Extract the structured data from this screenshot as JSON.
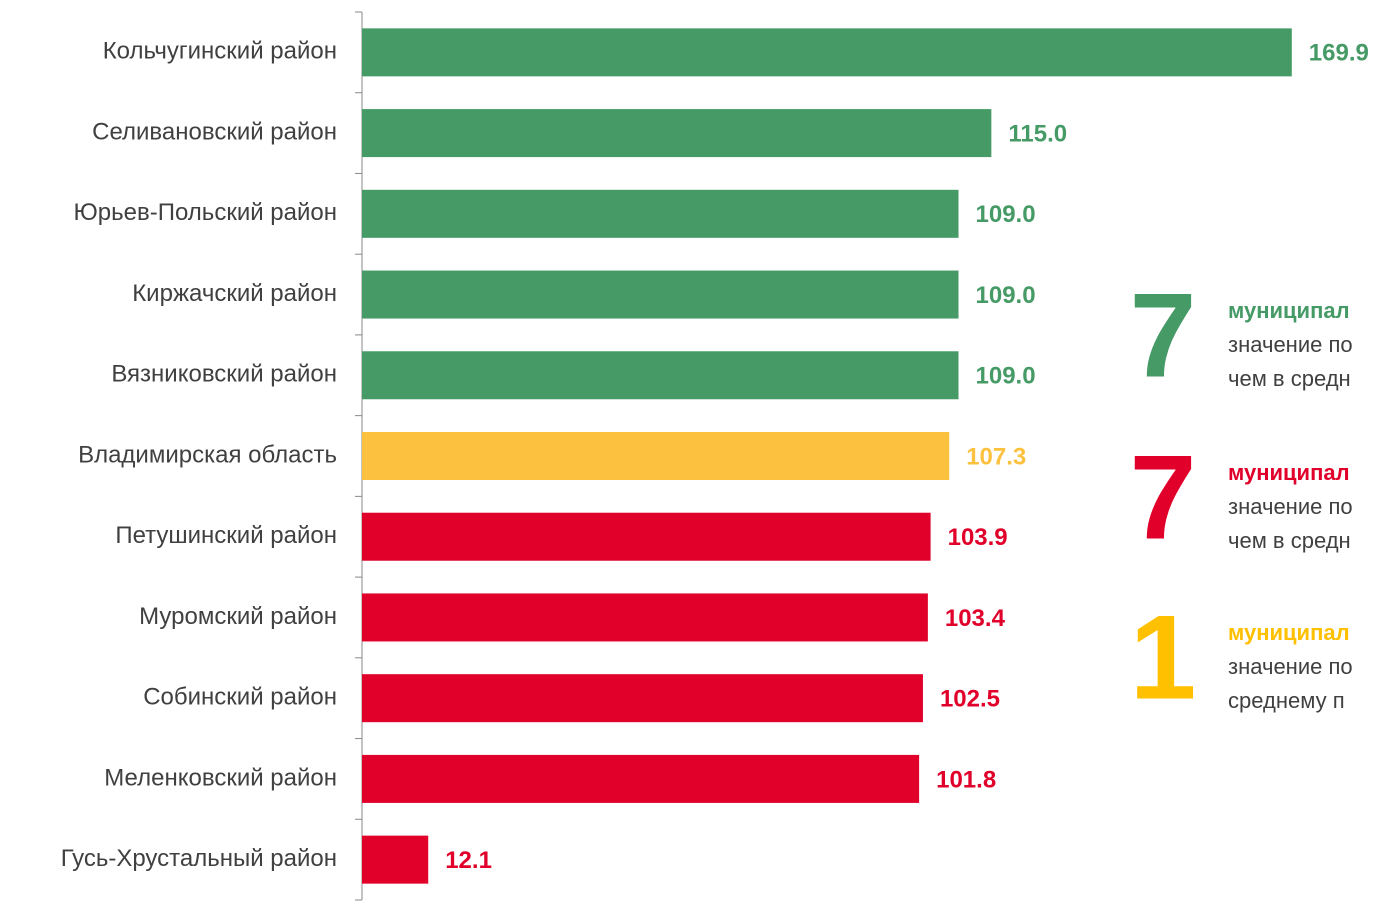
{
  "chart_data": {
    "type": "bar",
    "categories": [
      "Кольчугинский район",
      "Селивановский район",
      "Юрьев-Польский район",
      "Киржачский район",
      "Вязниковский район",
      "Владимирская область",
      "Петушинский район",
      "Муромский район",
      "Собинский район",
      "Меленковский район",
      "Гусь-Хрустальный район"
    ],
    "values": [
      169.9,
      115.0,
      109.0,
      109.0,
      109.0,
      107.3,
      103.9,
      103.4,
      102.5,
      101.8,
      12.1
    ],
    "value_labels": [
      "169.9",
      "115.0",
      "109.0",
      "109.0",
      "109.0",
      "107.3",
      "103.9",
      "103.4",
      "102.5",
      "101.8",
      "12.1"
    ],
    "colors": [
      "#459a66",
      "#459a66",
      "#459a66",
      "#459a66",
      "#459a66",
      "#fcc13f",
      "#e0002a",
      "#e0002a",
      "#e0002a",
      "#e0002a",
      "#e0002a"
    ],
    "xlim": [
      0,
      186.2
    ]
  },
  "annotations": [
    {
      "number": "7",
      "color": "#459a66",
      "lines": [
        "муниципал",
        "значение по",
        "чем в средн"
      ]
    },
    {
      "number": "7",
      "color": "#e0002a",
      "lines": [
        "муниципал",
        "значение по",
        "чем в средн"
      ]
    },
    {
      "number": "1",
      "color": "#ffc000",
      "lines": [
        "муниципал",
        "значение по",
        "среднему п"
      ]
    }
  ]
}
